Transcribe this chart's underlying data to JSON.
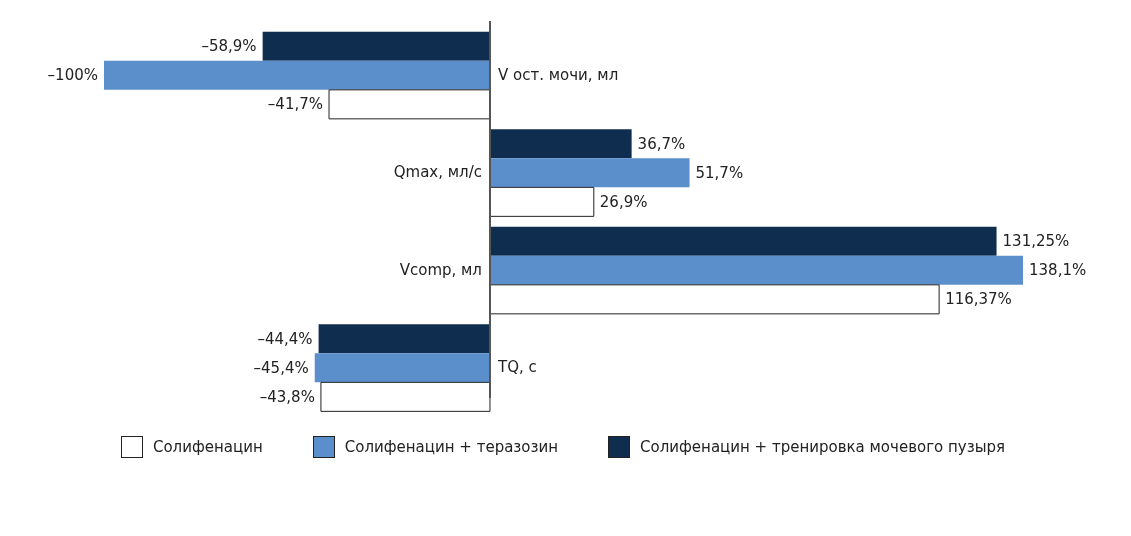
{
  "chart_data": {
    "type": "bar",
    "orientation": "horizontal",
    "categories": [
      "V ост. мочи, мл",
      "Qmax, мл/с",
      "Vcomp, мл",
      "TQ, с"
    ],
    "legend": "bottom",
    "series": [
      {
        "name": "Солифенацин",
        "color": "#ffffff",
        "values": [
          -41.7,
          26.9,
          116.37,
          -43.8
        ],
        "value_labels": [
          "–41,7%",
          "26,9%",
          "116,37%",
          "–43,8%"
        ]
      },
      {
        "name": "Солифенацин + теразозин",
        "color": "#5b8fcc",
        "values": [
          -100,
          51.7,
          138.1,
          -45.4
        ],
        "value_labels": [
          "–100%",
          "51,7%",
          "138,1%",
          "–45,4%"
        ]
      },
      {
        "name": "Солифенацин + тренировка мочевого пузыря",
        "color": "#0f2d4e",
        "values": [
          -58.9,
          36.7,
          131.25,
          -44.4
        ],
        "value_labels": [
          "–58,9%",
          "36,7%",
          "131,25%",
          "–44,4%"
        ]
      }
    ]
  }
}
